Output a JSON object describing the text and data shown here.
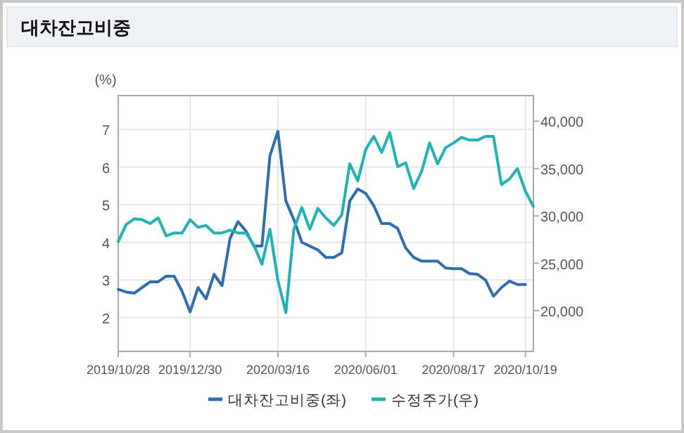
{
  "chart_data": {
    "type": "line",
    "title": "대차잔고비중",
    "ylabel": "(%)",
    "x": [
      "2019-10-28",
      "2019-11-04",
      "2019-11-11",
      "2019-11-18",
      "2019-11-25",
      "2019-12-02",
      "2019-12-09",
      "2019-12-16",
      "2019-12-23",
      "2019-12-30",
      "2020-01-06",
      "2020-01-13",
      "2020-01-20",
      "2020-01-27",
      "2020-02-03",
      "2020-02-10",
      "2020-02-17",
      "2020-02-24",
      "2020-03-02",
      "2020-03-09",
      "2020-03-16",
      "2020-03-23",
      "2020-03-30",
      "2020-04-06",
      "2020-04-13",
      "2020-04-20",
      "2020-04-27",
      "2020-05-04",
      "2020-05-11",
      "2020-05-18",
      "2020-05-25",
      "2020-06-01",
      "2020-06-08",
      "2020-06-15",
      "2020-06-22",
      "2020-06-29",
      "2020-07-06",
      "2020-07-13",
      "2020-07-20",
      "2020-07-27",
      "2020-08-03",
      "2020-08-10",
      "2020-08-17",
      "2020-08-24",
      "2020-08-31",
      "2020-09-07",
      "2020-09-14",
      "2020-09-21",
      "2020-09-28",
      "2020-10-05",
      "2020-10-12",
      "2020-10-19",
      "2020-10-26"
    ],
    "series": [
      {
        "name": "대차잔고비중(좌)",
        "color": "#2f6db0",
        "values": [
          2.75,
          2.68,
          2.65,
          2.8,
          2.95,
          2.95,
          3.1,
          3.1,
          2.7,
          2.15,
          2.8,
          2.5,
          3.15,
          2.85,
          4.1,
          4.55,
          4.3,
          3.9,
          3.9,
          6.3,
          6.95,
          5.1,
          4.6,
          4.0,
          3.9,
          3.8,
          3.6,
          3.6,
          3.72,
          5.1,
          5.42,
          5.3,
          4.98,
          4.5,
          4.5,
          4.37,
          3.85,
          3.6,
          3.5,
          3.5,
          3.5,
          3.32,
          3.3,
          3.3,
          3.17,
          3.15,
          3.0,
          2.57,
          2.8,
          2.97,
          2.88,
          2.88,
          null
        ]
      },
      {
        "name": "수정주가(우)",
        "color": "#1fb3b8",
        "axis": "y2",
        "values": [
          27300,
          29100,
          29700,
          29600,
          29200,
          29800,
          27900,
          28200,
          28200,
          29600,
          28800,
          29000,
          28200,
          28200,
          28500,
          28200,
          28200,
          26900,
          24900,
          28600,
          23200,
          19800,
          28600,
          30900,
          28600,
          30800,
          29800,
          29000,
          30100,
          35500,
          33700,
          37000,
          38400,
          36700,
          38800,
          35200,
          35600,
          32900,
          34700,
          37700,
          35500,
          37200,
          37700,
          38300,
          38000,
          38000,
          38400,
          38400,
          33300,
          33900,
          35000,
          32600,
          31000
        ]
      }
    ],
    "xlim": [
      "2019-10-28",
      "2020-10-26"
    ],
    "xticks": [
      {
        "value": "2019-10-28",
        "label": "2019/10/28"
      },
      {
        "value": "2019-12-30",
        "label": "2019/12/30"
      },
      {
        "value": "2020-03-16",
        "label": "2020/03/16"
      },
      {
        "value": "2020-06-01",
        "label": "2020/06/01"
      },
      {
        "value": "2020-08-17",
        "label": "2020/08/17"
      },
      {
        "value": "2020-10-19",
        "label": "2020/10/19"
      }
    ],
    "ylim": [
      1.1,
      7.9
    ],
    "yticks": [
      2,
      3,
      4,
      5,
      6,
      7
    ],
    "y2lim": [
      15700,
      42700
    ],
    "y2ticks": [
      {
        "value": 20000,
        "label": "20,000"
      },
      {
        "value": 25000,
        "label": "25,000"
      },
      {
        "value": 30000,
        "label": "30,000"
      },
      {
        "value": 35000,
        "label": "35,000"
      },
      {
        "value": 40000,
        "label": "40,000"
      }
    ],
    "grid": true,
    "legend": "bottom"
  }
}
